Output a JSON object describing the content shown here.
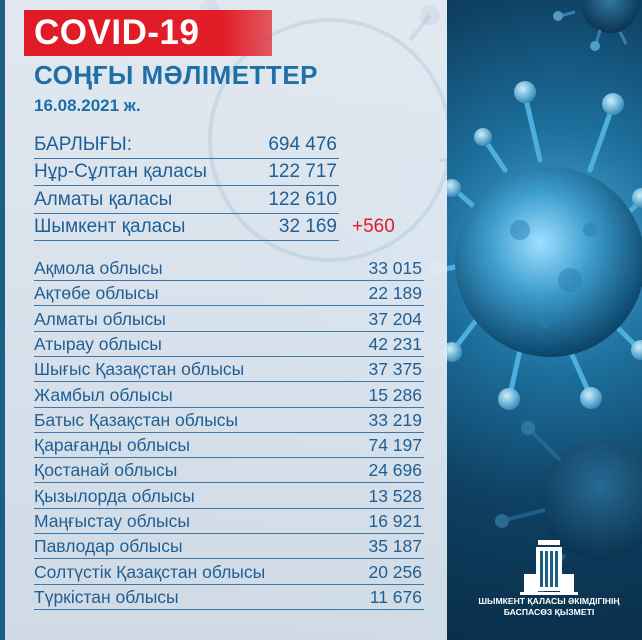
{
  "banner": {
    "text": "COVID-19"
  },
  "title": "СОҢҒЫ МӘЛІМЕТТЕР",
  "date": "16.08.2021 ж.",
  "top_rows": [
    {
      "label": "БАРЛЫҒЫ:",
      "value": "694 476"
    },
    {
      "label": "Нұр-Сұлтан қаласы",
      "value": "122 717"
    },
    {
      "label": "Алматы қаласы",
      "value": "122 610"
    },
    {
      "label": "Шымкент қаласы",
      "value": "32 169",
      "extra": "+560"
    }
  ],
  "regions": [
    {
      "label": "Ақмола облысы",
      "value": "33 015"
    },
    {
      "label": "Ақтөбе облысы",
      "value": "22 189"
    },
    {
      "label": "Алматы облысы",
      "value": "37 204"
    },
    {
      "label": "Атырау облысы",
      "value": "42 231"
    },
    {
      "label": "Шығыс Қазақстан облысы",
      "value": "37 375"
    },
    {
      "label": "Жамбыл облысы",
      "value": "15 286"
    },
    {
      "label": "Батыс Қазақстан облысы",
      "value": "33 219"
    },
    {
      "label": "Қарағанды облысы",
      "value": "74 197"
    },
    {
      "label": "Қостанай облысы",
      "value": "24 696"
    },
    {
      "label": "Қызылорда облысы",
      "value": "13 528"
    },
    {
      "label": "Маңғыстау облысы",
      "value": "16 921"
    },
    {
      "label": "Павлодар облысы",
      "value": "35 187"
    },
    {
      "label": "Солтүстік Қазақстан облысы",
      "value": "20 256"
    },
    {
      "label": "Түркістан облысы",
      "value": "11 676"
    }
  ],
  "brand": {
    "line1": "ШЫМКЕНТ ҚАЛАСЫ ӘКІМДІГІНІҢ",
    "line2": "БАСПАСӨЗ ҚЫЗМЕТІ",
    "icon": "akimat-building-icon"
  },
  "colors": {
    "banner_red": "#e31d28",
    "text_blue": "#1f5f95",
    "accent_red": "#e01b24"
  }
}
